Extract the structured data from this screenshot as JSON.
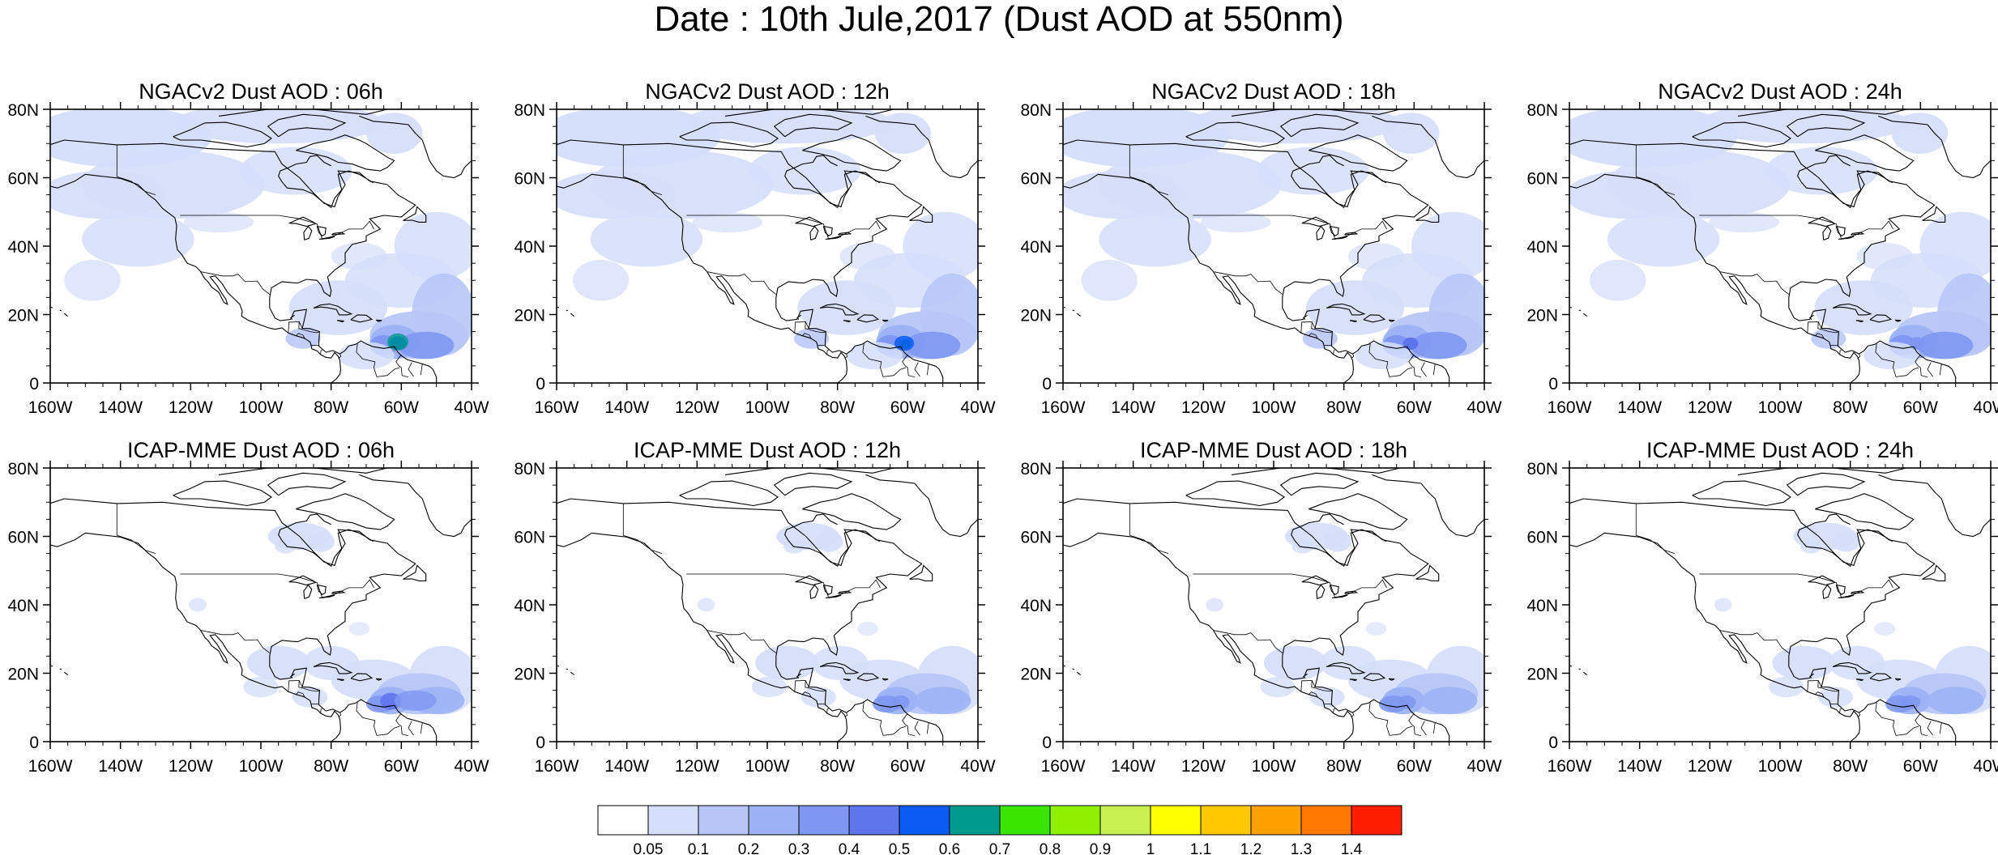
{
  "title": "Date : 10th Jule,2017 (Dust AOD at 550nm)",
  "colors": {
    "land_outline": "#000000",
    "background": "#ffffff"
  },
  "axes": {
    "lat_labels": [
      "80N",
      "60N",
      "40N",
      "20N",
      "0"
    ],
    "lon_labels": [
      "160W",
      "140W",
      "120W",
      "100W",
      "80W",
      "60W",
      "40W"
    ]
  },
  "panels": [
    {
      "title": "NGACv2 Dust AOD : 06h",
      "model": "NGACv2",
      "hour": "06h"
    },
    {
      "title": "NGACv2 Dust AOD : 12h",
      "model": "NGACv2",
      "hour": "12h"
    },
    {
      "title": "NGACv2 Dust AOD : 18h",
      "model": "NGACv2",
      "hour": "18h"
    },
    {
      "title": "NGACv2 Dust AOD : 24h",
      "model": "NGACv2",
      "hour": "24h"
    },
    {
      "title": "ICAP-MME Dust AOD : 06h",
      "model": "ICAP-MME",
      "hour": "06h"
    },
    {
      "title": "ICAP-MME Dust AOD : 12h",
      "model": "ICAP-MME",
      "hour": "12h"
    },
    {
      "title": "ICAP-MME Dust AOD : 18h",
      "model": "ICAP-MME",
      "hour": "18h"
    },
    {
      "title": "ICAP-MME Dust AOD : 24h",
      "model": "ICAP-MME",
      "hour": "24h"
    }
  ],
  "colorbar": {
    "colors": [
      "#ffffff",
      "#d5defa",
      "#b7c6f7",
      "#9cb2f5",
      "#8097f2",
      "#5f75ec",
      "#0a5cf5",
      "#009a8e",
      "#3ae600",
      "#8ff000",
      "#c8f050",
      "#ffff00",
      "#ffc800",
      "#ffa000",
      "#ff7800",
      "#ff1e00"
    ],
    "labels": [
      "0.05",
      "0.1",
      "0.2",
      "0.3",
      "0.4",
      "0.5",
      "0.6",
      "0.7",
      "0.8",
      "0.9",
      "1",
      "1.1",
      "1.2",
      "1.3",
      "1.4"
    ]
  }
}
